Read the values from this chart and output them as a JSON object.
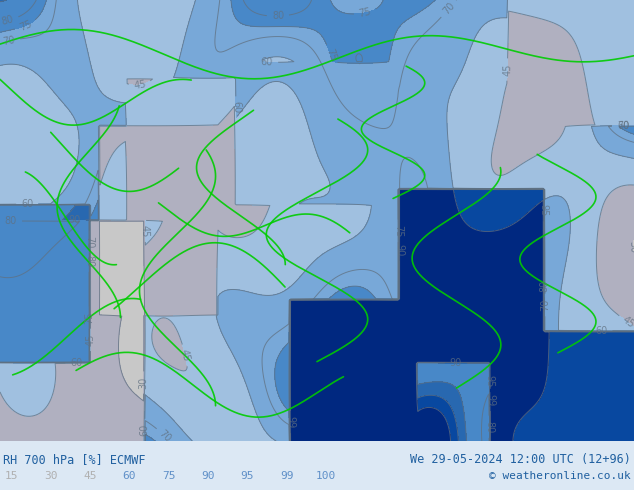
{
  "title_left": "RH 700 hPa [%] ECMWF",
  "title_right": "We 29-05-2024 12:00 UTC (12+96)",
  "copyright": "© weatheronline.co.uk",
  "colorbar_levels": [
    15,
    30,
    45,
    60,
    75,
    90,
    95,
    99,
    100
  ],
  "colorbar_label_colors": [
    "#b0b0b0",
    "#b0b0b0",
    "#b0b0b0",
    "#6090c8",
    "#6090c8",
    "#6090c8",
    "#6090c8",
    "#6090c8",
    "#6090c8"
  ],
  "fill_colors": [
    "#e0e0e0",
    "#c8c8c8",
    "#b0b0c0",
    "#a0c0e0",
    "#78a8d8",
    "#4888c8",
    "#2868b0",
    "#0848a0",
    "#002880"
  ],
  "contour_levels": [
    15,
    30,
    45,
    60,
    70,
    75,
    80,
    90,
    95,
    99
  ],
  "fill_levels": [
    0,
    15,
    30,
    45,
    60,
    75,
    90,
    95,
    99,
    105
  ],
  "bg_color": "#a0c0e0",
  "border_color": "#00cc00",
  "contour_color": "#607080",
  "label_color": "#2060a0",
  "copyright_color": "#2060a0",
  "bottom_bg": "#dce8f4",
  "figsize": [
    6.34,
    4.9
  ],
  "dpi": 100
}
